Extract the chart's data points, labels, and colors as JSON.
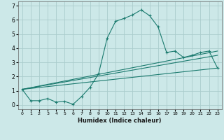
{
  "xlabel": "Humidex (Indice chaleur)",
  "bg_color": "#cce8e8",
  "grid_color": "#aacccc",
  "line_color": "#1a7a6e",
  "xlim": [
    -0.5,
    23.5
  ],
  "ylim": [
    -0.3,
    7.3
  ],
  "xticks": [
    0,
    1,
    2,
    3,
    4,
    5,
    6,
    7,
    8,
    9,
    10,
    11,
    12,
    13,
    14,
    15,
    16,
    17,
    18,
    19,
    20,
    21,
    22,
    23
  ],
  "yticks": [
    0,
    1,
    2,
    3,
    4,
    5,
    6,
    7
  ],
  "series1_x": [
    0,
    1,
    2,
    3,
    4,
    5,
    6,
    7,
    8,
    9,
    10,
    11,
    12,
    13,
    14,
    15,
    16,
    17,
    18,
    19,
    20,
    21,
    22,
    23
  ],
  "series1_y": [
    1.1,
    0.3,
    0.3,
    0.45,
    0.2,
    0.25,
    0.05,
    0.6,
    1.25,
    2.2,
    4.7,
    5.9,
    6.1,
    6.35,
    6.7,
    6.3,
    5.5,
    3.7,
    3.8,
    3.35,
    3.5,
    3.7,
    3.8,
    2.6
  ],
  "line1_x": [
    0,
    23
  ],
  "line1_y": [
    1.1,
    2.6
  ],
  "line2_x": [
    0,
    23
  ],
  "line2_y": [
    1.1,
    3.5
  ],
  "line3_x": [
    0,
    23
  ],
  "line3_y": [
    1.1,
    3.8
  ]
}
